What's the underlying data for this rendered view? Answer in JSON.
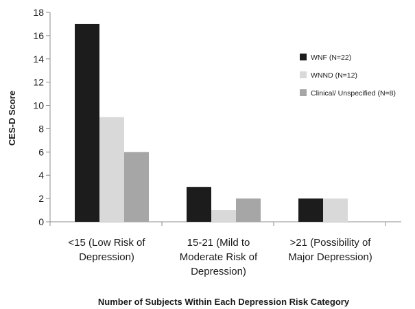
{
  "chart_data": {
    "type": "bar",
    "title": "",
    "xlabel": "Number of Subjects Within Each Depression Risk Category",
    "ylabel": "CES-D Score",
    "ylim": [
      0,
      18
    ],
    "y_ticks": [
      0,
      2,
      4,
      6,
      8,
      10,
      12,
      14,
      16,
      18
    ],
    "grid": false,
    "legend_position": "right",
    "categories": [
      [
        "<15 (Low Risk of",
        "Depression)"
      ],
      [
        "15-21 (Mild to",
        "Moderate Risk of",
        "Depression)"
      ],
      [
        ">21 (Possibility of",
        "Major Depression)"
      ]
    ],
    "series": [
      {
        "name": "WNF (N=22)",
        "color": "#1c1c1c",
        "values": [
          17,
          3,
          2
        ]
      },
      {
        "name": "WNND (N=12)",
        "color": "#d9d9d9",
        "values": [
          9,
          1,
          2
        ]
      },
      {
        "name": "Clinical/ Unspecified (N=8)",
        "color": "#a6a6a6",
        "values": [
          6,
          2,
          0
        ]
      }
    ]
  }
}
